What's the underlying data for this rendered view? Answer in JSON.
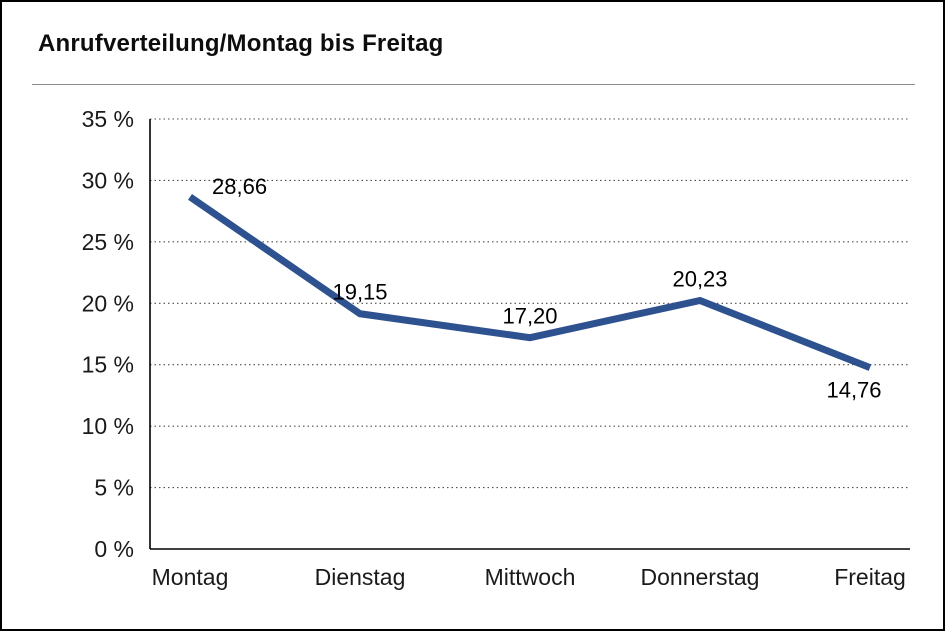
{
  "page": {
    "background_color": "#ffffff",
    "border_color": "#000000"
  },
  "chart_data": {
    "type": "line",
    "title": "Anrufverteilung/Montag bis Freitag",
    "categories": [
      "Montag",
      "Dienstag",
      "Mittwoch",
      "Donnerstag",
      "Freitag"
    ],
    "values": [
      28.66,
      19.15,
      17.2,
      20.23,
      14.76
    ],
    "value_labels": [
      "28,66",
      "19,15",
      "17,20",
      "20,23",
      "14,76"
    ],
    "label_positions": [
      "right",
      "above",
      "above",
      "above",
      "below"
    ],
    "xlabel": "",
    "ylabel": "",
    "ylim": [
      0,
      35
    ],
    "ytick_step": 5,
    "ytick_suffix": " %",
    "grid": "dotted-horizontal",
    "legend": "none",
    "line_color": "#2e5190",
    "axis_color": "#000000",
    "gridline_color": "#4d4d4d",
    "text_color": "#1a1a1a"
  }
}
